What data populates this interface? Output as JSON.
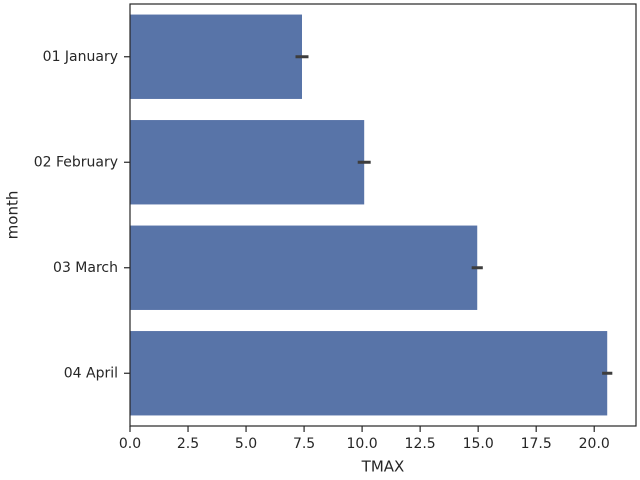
{
  "chart_data": {
    "type": "barh",
    "xlabel": "TMAX",
    "ylabel": "month",
    "categories": [
      "01 January",
      "02 February",
      "03 March",
      "04 April"
    ],
    "values": [
      7.41,
      10.09,
      14.96,
      20.56
    ],
    "errors": [
      0.28,
      0.28,
      0.24,
      0.22
    ],
    "color": "#5874a8",
    "xlim": [
      0,
      21.8
    ],
    "xticks": [
      {
        "value": 0,
        "label": "0.0"
      },
      2.5,
      {
        "value": 5,
        "label": "5.0"
      },
      7.5,
      {
        "value": 10,
        "label": "10.0"
      },
      12.5,
      {
        "value": 15,
        "label": "15.0"
      },
      17.5,
      {
        "value": 20,
        "label": "20.0"
      }
    ],
    "grid": false
  }
}
